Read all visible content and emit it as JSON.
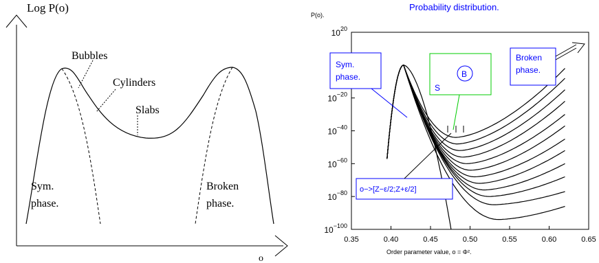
{
  "left_panel": {
    "ylabel": "Log P(o)",
    "xlabel": "o",
    "labels": {
      "bubbles": "Bubbles",
      "cylinders": "Cylinders",
      "slabs": "Slabs",
      "sym_line1": "Sym.",
      "sym_line2": "phase.",
      "broken_line1": "Broken",
      "broken_line2": "phase."
    }
  },
  "chart_data": {
    "type": "line",
    "title": "Probability distribution.",
    "ylabel": "P(o).",
    "xlabel": "Order parameter value, o = Φ².",
    "xlim": [
      0.35,
      0.65
    ],
    "ylim_exponent": [
      -100,
      20
    ],
    "x_ticks": [
      "0.35",
      "0.40",
      "0.45",
      "0.50",
      "0.55",
      "0.60",
      "0.65"
    ],
    "y_ticks": [
      {
        "base": "10",
        "exp": "20",
        "value": 20
      },
      {
        "base": "10",
        "exp": "−20",
        "value": -20
      },
      {
        "base": "10",
        "exp": "−40",
        "value": -40
      },
      {
        "base": "10",
        "exp": "−60",
        "value": -60
      },
      {
        "base": "10",
        "exp": "−80",
        "value": -80
      },
      {
        "base": "10",
        "exp": "−100",
        "value": -100
      }
    ],
    "peak": {
      "x": 0.416,
      "log10_y": 0
    },
    "series_end_log10_y": [
      -2,
      -8,
      -15,
      -22,
      -30,
      -37,
      -45,
      -52,
      -60,
      -68,
      -77,
      -86
    ],
    "series_min_x": [
      0.482,
      0.484,
      0.487,
      0.491,
      0.496,
      0.501,
      0.506,
      0.512,
      0.518,
      0.524,
      0.53,
      0.536
    ],
    "annotations": {
      "sym_line1": "Sym.",
      "sym_line2": "phase.",
      "broken_line1": "Broken",
      "broken_line2": "phase.",
      "b_label": "B",
      "s_label": "S",
      "window_label": "o−>[Z−ε/2;Z+ε/2]"
    },
    "colors": {
      "annotation": "#0000ff",
      "window_box": "#00cc00",
      "curve": "#000000"
    }
  }
}
